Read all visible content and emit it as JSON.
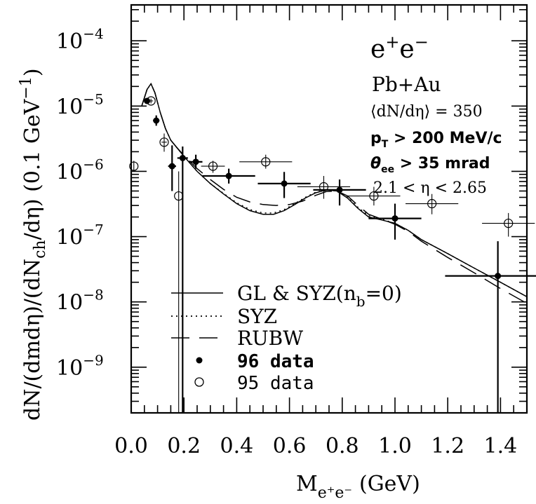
{
  "chart_data": {
    "type": "scatter",
    "xlabel": "M",
    "xlabel_sub": "e⁺e⁻",
    "xlabel_unit": "(GeV)",
    "ylabel": "dN/(dmdη)/(dN",
    "ylabel_sub": "ch",
    "ylabel_rest": "/dη)  (0.1 GeV",
    "ylabel_sup": "−1",
    "ylabel_end": ")",
    "xlim": [
      0.0,
      1.5
    ],
    "ylim_log10": [
      -9.7,
      -3.45
    ],
    "y_scale": "log",
    "x_ticks": [
      {
        "v": 0.0,
        "label": "0.0"
      },
      {
        "v": 0.2,
        "label": "0.2"
      },
      {
        "v": 0.4,
        "label": "0.4"
      },
      {
        "v": 0.6,
        "label": "0.6"
      },
      {
        "v": 0.8,
        "label": "0.8"
      },
      {
        "v": 1.0,
        "label": "1.0"
      },
      {
        "v": 1.2,
        "label": "1.2"
      },
      {
        "v": 1.4,
        "label": "1.4"
      }
    ],
    "y_ticks": [
      {
        "exp": -4,
        "base": "10",
        "sup": "−4"
      },
      {
        "exp": -5,
        "base": "10",
        "sup": "−5"
      },
      {
        "exp": -6,
        "base": "10",
        "sup": "−6"
      },
      {
        "exp": -7,
        "base": "10",
        "sup": "−7"
      },
      {
        "exp": -8,
        "base": "10",
        "sup": "−8"
      },
      {
        "exp": -9,
        "base": "10",
        "sup": "−9"
      }
    ],
    "annotations": {
      "reaction_base": "e",
      "reaction_sup1": "+",
      "reaction_mid": "e",
      "reaction_sup2": "−",
      "system": "Pb+Au",
      "multiplicity": "⟨dN/dη⟩ = 350",
      "pt_cut_base": "p",
      "pt_cut_sub": "T",
      "pt_cut_rest": " > 200 MeV/c",
      "theta_cut_base": "θ",
      "theta_cut_sub": "ee",
      "theta_cut_rest": " > 35 mrad",
      "eta_range": "2.1 < η < 2.65"
    },
    "legend": {
      "gl_syz": "GL & SYZ(n",
      "gl_syz_sub": "b",
      "gl_syz_end": "=0)",
      "syz": "SYZ",
      "rubw": "RUBW",
      "data96": "96 data",
      "data95": "95 data"
    },
    "series": [
      {
        "name": "96 data",
        "marker": "filled-circle",
        "points": [
          {
            "x": 0.06,
            "y": 1.2e-05,
            "xerr": 0.01,
            "ylo": 1.1e-05,
            "yhi": 1.3e-05
          },
          {
            "x": 0.095,
            "y": 6e-06,
            "xerr": 0.012,
            "ylo": 5e-06,
            "yhi": 7.2e-06
          },
          {
            "x": 0.155,
            "y": 1.2e-06,
            "xerr": 0.015,
            "ylo": 5e-07,
            "yhi": 2.5e-06
          },
          {
            "x": 0.195,
            "y": 1.6e-06,
            "xerr": 0.02,
            "ylo": 2e-10,
            "yhi": 2.4e-06
          },
          {
            "x": 0.245,
            "y": 1.4e-06,
            "xerr": 0.025,
            "ylo": 1.1e-06,
            "yhi": 1.8e-06
          },
          {
            "x": 0.37,
            "y": 8.5e-07,
            "xerr": 0.1,
            "ylo": 6.5e-07,
            "yhi": 1.1e-06
          },
          {
            "x": 0.58,
            "y": 6.5e-07,
            "xerr": 0.1,
            "ylo": 3.9e-07,
            "yhi": 9.8e-07
          },
          {
            "x": 0.79,
            "y": 5.2e-07,
            "xerr": 0.1,
            "ylo": 3e-07,
            "yhi": 7.5e-07
          },
          {
            "x": 1.0,
            "y": 1.9e-07,
            "xerr": 0.1,
            "ylo": 9e-08,
            "yhi": 3.2e-07
          },
          {
            "x": 1.39,
            "y": 2.5e-08,
            "xerr": 0.2,
            "ylo": 2e-10,
            "yhi": 8.5e-08
          }
        ]
      },
      {
        "name": "95 data",
        "marker": "open-circle",
        "points": [
          {
            "x": 0.01,
            "y": 1.2e-06,
            "xerr": 0.0,
            "ylo": 1e-06,
            "yhi": 1.45e-06
          },
          {
            "x": 0.075,
            "y": 1.2e-05,
            "xerr": 0.008,
            "ylo": 1.1e-05,
            "yhi": 1.3e-05
          },
          {
            "x": 0.125,
            "y": 2.8e-06,
            "xerr": 0.01,
            "ylo": 2e-06,
            "yhi": 3.8e-06
          },
          {
            "x": 0.18,
            "y": 4.2e-07,
            "xerr": 0.0,
            "ylo": 2e-10,
            "yhi": 1e-06
          },
          {
            "x": 0.31,
            "y": 1.2e-06,
            "xerr": 0.045,
            "ylo": 9.5e-07,
            "yhi": 1.45e-06
          },
          {
            "x": 0.51,
            "y": 1.4e-06,
            "xerr": 0.1,
            "ylo": 1.1e-06,
            "yhi": 1.8e-06
          },
          {
            "x": 0.73,
            "y": 5.8e-07,
            "xerr": 0.1,
            "ylo": 3.8e-07,
            "yhi": 8.5e-07
          },
          {
            "x": 0.92,
            "y": 4.2e-07,
            "xerr": 0.1,
            "ylo": 3e-07,
            "yhi": 5.8e-07
          },
          {
            "x": 1.14,
            "y": 3.2e-07,
            "xerr": 0.1,
            "ylo": 2.2e-07,
            "yhi": 4.5e-07
          },
          {
            "x": 1.43,
            "y": 1.6e-07,
            "xerr": 0.1,
            "ylo": 1e-07,
            "yhi": 2.3e-07
          }
        ]
      },
      {
        "name": "GL & SYZ(nb=0)",
        "line": "solid",
        "x": [
          0.04,
          0.06,
          0.075,
          0.09,
          0.11,
          0.13,
          0.15,
          0.17,
          0.2,
          0.25,
          0.3,
          0.35,
          0.4,
          0.45,
          0.5,
          0.54,
          0.58,
          0.62,
          0.66,
          0.7,
          0.74,
          0.78,
          0.82,
          0.86,
          0.9,
          0.95,
          1.0,
          1.05,
          1.1,
          1.2,
          1.3,
          1.4,
          1.5
        ],
        "y": [
          1e-05,
          1.8e-05,
          2.2e-05,
          1.6e-05,
          8e-06,
          4.5e-06,
          3e-06,
          2.4e-06,
          1.7e-06,
          1e-06,
          6.5e-07,
          4.5e-07,
          3.2e-07,
          2.5e-07,
          2.2e-07,
          2.2e-07,
          2.5e-07,
          3.1e-07,
          3.9e-07,
          4.7e-07,
          5.2e-07,
          5e-07,
          3.9e-07,
          2.7e-07,
          2e-07,
          1.8e-07,
          1.6e-07,
          1.25e-07,
          9e-08,
          5.5e-08,
          3.3e-08,
          2e-08,
          1.2e-08
        ]
      },
      {
        "name": "SYZ",
        "line": "dotted",
        "x": [
          0.04,
          0.06,
          0.075,
          0.09,
          0.11,
          0.13,
          0.15,
          0.17,
          0.2,
          0.25,
          0.3,
          0.35,
          0.4,
          0.45,
          0.5,
          0.54,
          0.58,
          0.62,
          0.66,
          0.7,
          0.74,
          0.78,
          0.82,
          0.86,
          0.9,
          0.95,
          1.0,
          1.05,
          1.1,
          1.2,
          1.3,
          1.4,
          1.5
        ],
        "y": [
          1e-05,
          1.8e-05,
          2.2e-05,
          1.6e-05,
          8e-06,
          4.5e-06,
          3e-06,
          2.4e-06,
          1.7e-06,
          1e-06,
          6.5e-07,
          4.6e-07,
          3.3e-07,
          2.6e-07,
          2.3e-07,
          2.3e-07,
          2.6e-07,
          3.2e-07,
          4e-07,
          4.8e-07,
          5.2e-07,
          5e-07,
          4e-07,
          2.8e-07,
          2.1e-07,
          1.85e-07,
          1.6e-07,
          1.25e-07,
          9e-08,
          5.5e-08,
          3.3e-08,
          2e-08,
          1.2e-08
        ]
      },
      {
        "name": "RUBW",
        "line": "dashed",
        "x": [
          0.04,
          0.06,
          0.075,
          0.09,
          0.11,
          0.13,
          0.15,
          0.17,
          0.2,
          0.25,
          0.3,
          0.35,
          0.4,
          0.45,
          0.5,
          0.55,
          0.6,
          0.65,
          0.7,
          0.74,
          0.78,
          0.82,
          0.86,
          0.9,
          0.95,
          1.0,
          1.05,
          1.1,
          1.2,
          1.3,
          1.4,
          1.5
        ],
        "y": [
          1e-05,
          1.8e-05,
          2.2e-05,
          1.6e-05,
          8e-06,
          4.5e-06,
          3e-06,
          2.4e-06,
          1.75e-06,
          1.1e-06,
          7.5e-07,
          5.3e-07,
          4e-07,
          3.4e-07,
          3.1e-07,
          3e-07,
          3.1e-07,
          3.5e-07,
          4.3e-07,
          4.9e-07,
          5e-07,
          4.2e-07,
          3e-07,
          2.2e-07,
          1.85e-07,
          1.55e-07,
          1.2e-07,
          8.5e-08,
          4.8e-08,
          2.8e-08,
          1.6e-08,
          9.5e-09
        ]
      }
    ]
  }
}
